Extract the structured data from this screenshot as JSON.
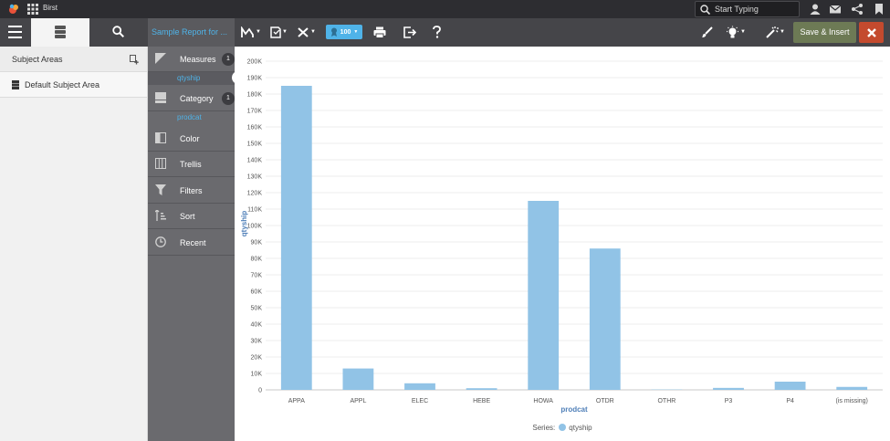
{
  "app": {
    "brand": "Birst"
  },
  "search": {
    "placeholder": "Start Typing"
  },
  "toolbar": {
    "report_title": "Sample Report for ...",
    "zoom": "100",
    "save_label": "Save & Insert"
  },
  "left_panel": {
    "subject_areas_label": "Subject Areas",
    "default_subject_area": "Default Subject Area"
  },
  "shelf": {
    "measures_label": "Measures",
    "measures_count": "1",
    "measure_pill": "qtyship",
    "category_label": "Category",
    "category_count": "1",
    "category_pill": "prodcat",
    "color_label": "Color",
    "trellis_label": "Trellis",
    "filters_label": "Filters",
    "sort_label": "Sort",
    "recent_label": "Recent"
  },
  "legend": {
    "prefix": "Series:",
    "series": "qtyship"
  },
  "colors": {
    "bar": "#91c3e6",
    "accent": "#4fb3e8",
    "save": "#6d7a55",
    "close": "#c44a2e"
  },
  "chart_data": {
    "type": "bar",
    "categories": [
      "APPA",
      "APPL",
      "ELEC",
      "HEBE",
      "HOWA",
      "OTDR",
      "OTHR",
      "P3",
      "P4",
      "(is missing)"
    ],
    "series": [
      {
        "name": "qtyship",
        "values": [
          185000,
          13000,
          4000,
          1000,
          115000,
          86000,
          200,
          1200,
          5000,
          1800
        ]
      }
    ],
    "xlabel": "prodcat",
    "ylabel": "qtyship",
    "ylim": [
      0,
      200000
    ],
    "yticks": [
      0,
      10000,
      20000,
      30000,
      40000,
      50000,
      60000,
      70000,
      80000,
      90000,
      100000,
      110000,
      120000,
      130000,
      140000,
      150000,
      160000,
      170000,
      180000,
      190000,
      200000
    ],
    "ytick_labels": [
      "0",
      "10K",
      "20K",
      "30K",
      "40K",
      "50K",
      "60K",
      "70K",
      "80K",
      "90K",
      "100K",
      "110K",
      "120K",
      "130K",
      "140K",
      "150K",
      "160K",
      "170K",
      "180K",
      "190K",
      "200K"
    ],
    "grid": true,
    "legend": "bottom"
  }
}
